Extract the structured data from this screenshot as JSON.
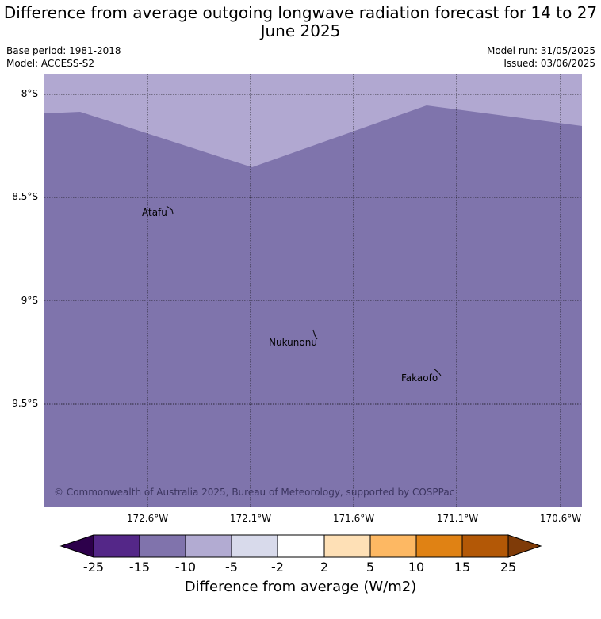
{
  "title": "Difference from average outgoing longwave radiation forecast for 14 to 27 June 2025",
  "meta": {
    "base_period": "Base period: 1981-2018",
    "model": "Model: ACCESS-S2",
    "model_run": "Model run: 31/05/2025",
    "issued": "Issued: 03/06/2025"
  },
  "map": {
    "copyright": "© Commonwealth of Australia 2025, Bureau of Meteorology, supported by COSPPac",
    "places": [
      "Atafu",
      "Nukunonu",
      "Fakaofo"
    ],
    "lat_labels": [
      "8°S",
      "8.5°S",
      "9°S",
      "9.5°S"
    ],
    "lon_labels": [
      "172.6°W",
      "172.1°W",
      "171.6°W",
      "171.1°W",
      "170.6°W"
    ],
    "colors": {
      "main": "#7f74ac",
      "upper": "#b1a8d1",
      "grid": "#111111"
    }
  },
  "colorbar": {
    "ticks": [
      "-25",
      "-15",
      "-10",
      "-5",
      "-2",
      "2",
      "5",
      "10",
      "15",
      "25"
    ],
    "colors": [
      "#2d004b",
      "#542788",
      "#8073ac",
      "#b2abd2",
      "#d8daeb",
      "#ffffff",
      "#fee0b6",
      "#fdb863",
      "#e08214",
      "#b35806",
      "#7f3b08"
    ],
    "label": "Difference from average (W/m2)"
  }
}
